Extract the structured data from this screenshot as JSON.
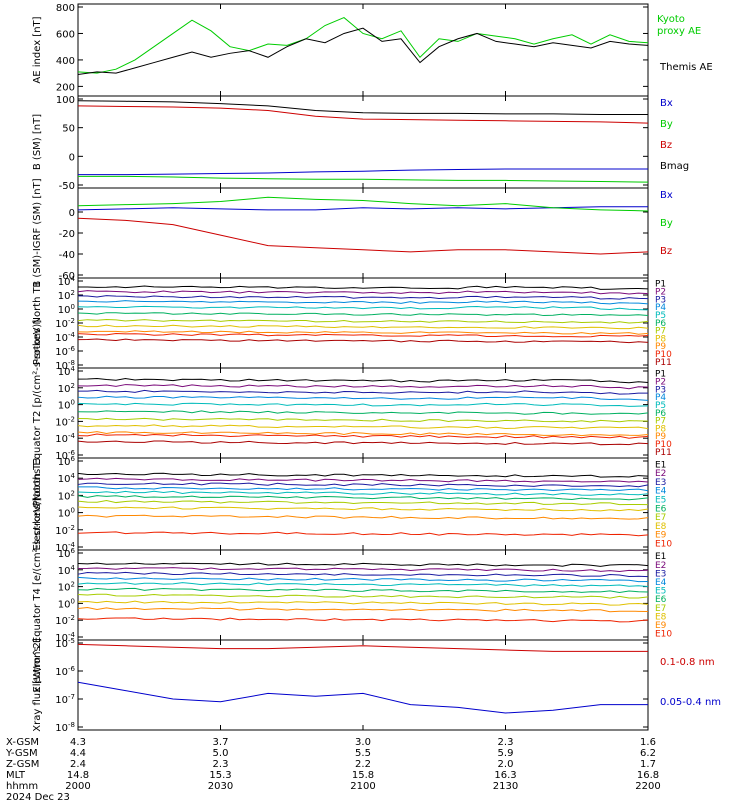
{
  "figure": {
    "date_label": "2024 Dec 23",
    "bottom_rows": [
      {
        "label": "X-GSM",
        "values": [
          "4.3",
          "3.7",
          "3.0",
          "2.3",
          "1.6"
        ]
      },
      {
        "label": "Y-GSM",
        "values": [
          "4.4",
          "5.0",
          "5.5",
          "5.9",
          "6.2"
        ]
      },
      {
        "label": "Z-GSM",
        "values": [
          "2.4",
          "2.3",
          "2.2",
          "2.0",
          "1.7"
        ]
      },
      {
        "label": "MLT",
        "values": [
          "14.8",
          "15.3",
          "15.8",
          "16.3",
          "16.8"
        ]
      },
      {
        "label": "hhmm",
        "values": [
          "2000",
          "2030",
          "2100",
          "2130",
          "2200"
        ]
      }
    ]
  },
  "chart_data": [
    {
      "type": "line",
      "ylabel": "AE index [nT]",
      "ylim": [
        150,
        800
      ],
      "yticks": [
        "800",
        "600",
        "400",
        "200"
      ],
      "x": [
        "2000",
        "2030",
        "2100",
        "2130",
        "2200"
      ],
      "series": [
        {
          "name": "Kyoto proxy AE",
          "color": "#00cc00",
          "x": [
            0,
            4,
            8,
            12,
            16,
            20,
            24,
            28,
            32,
            36,
            40,
            44,
            48,
            52,
            56,
            60,
            64,
            68,
            72,
            76,
            80,
            84,
            88,
            92,
            96,
            100,
            104,
            108,
            112,
            116,
            120
          ],
          "values": [
            310,
            300,
            330,
            400,
            500,
            600,
            700,
            620,
            500,
            470,
            520,
            510,
            560,
            660,
            720,
            600,
            560,
            620,
            420,
            560,
            540,
            600,
            580,
            560,
            520,
            560,
            590,
            520,
            590,
            540,
            530
          ]
        },
        {
          "name": "Themis AE",
          "color": "#000000",
          "x": [
            0,
            4,
            8,
            12,
            16,
            20,
            24,
            28,
            32,
            36,
            40,
            44,
            48,
            52,
            56,
            60,
            64,
            68,
            72,
            76,
            80,
            84,
            88,
            92,
            96,
            100,
            104,
            108,
            112,
            116,
            120
          ],
          "values": [
            290,
            310,
            300,
            340,
            380,
            420,
            460,
            420,
            450,
            470,
            420,
            500,
            560,
            530,
            600,
            640,
            540,
            560,
            380,
            500,
            560,
            600,
            540,
            520,
            500,
            530,
            510,
            490,
            540,
            520,
            510
          ]
        }
      ]
    },
    {
      "type": "line",
      "ylabel": "B (SM) [nT]",
      "ylim": [
        -50,
        100
      ],
      "yticks": [
        "100",
        "50",
        "0",
        "-50"
      ],
      "x": [
        "2000",
        "2030",
        "2100",
        "2130",
        "2200"
      ],
      "series": [
        {
          "name": "Bx",
          "color": "#0000cc",
          "x": [
            0,
            10,
            20,
            30,
            40,
            50,
            60,
            70,
            80,
            90,
            100,
            110,
            120
          ],
          "values": [
            -32,
            -32,
            -31,
            -30,
            -29,
            -27,
            -26,
            -24,
            -23,
            -22,
            -22,
            -22,
            -22
          ]
        },
        {
          "name": "By",
          "color": "#00cc00",
          "x": [
            0,
            10,
            20,
            30,
            40,
            50,
            60,
            70,
            80,
            90,
            100,
            110,
            120
          ],
          "values": [
            -35,
            -35,
            -36,
            -38,
            -39,
            -40,
            -40,
            -41,
            -42,
            -42,
            -43,
            -44,
            -45
          ]
        },
        {
          "name": "Bz",
          "color": "#cc0000",
          "x": [
            0,
            10,
            20,
            30,
            40,
            50,
            60,
            70,
            80,
            90,
            100,
            110,
            120
          ],
          "values": [
            88,
            87,
            86,
            84,
            80,
            70,
            65,
            64,
            63,
            62,
            61,
            60,
            58
          ]
        },
        {
          "name": "Bmag",
          "color": "#000000",
          "x": [
            0,
            10,
            20,
            30,
            40,
            50,
            60,
            70,
            80,
            90,
            100,
            110,
            120
          ],
          "values": [
            97,
            96,
            95,
            92,
            88,
            80,
            76,
            75,
            75,
            74,
            74,
            73,
            73
          ]
        }
      ]
    },
    {
      "type": "line",
      "ylabel": "B (SM)-IGRF (SM) [nT]",
      "ylim": [
        -60,
        20
      ],
      "yticks": [
        "0",
        "-20",
        "-40",
        "-60"
      ],
      "x": [
        "2000",
        "2030",
        "2100",
        "2130",
        "2200"
      ],
      "series": [
        {
          "name": "Bx",
          "color": "#0000cc",
          "x": [
            0,
            10,
            20,
            30,
            40,
            50,
            60,
            70,
            80,
            90,
            100,
            110,
            120
          ],
          "values": [
            2,
            3,
            4,
            3,
            2,
            2,
            4,
            3,
            4,
            3,
            4,
            5,
            5
          ]
        },
        {
          "name": "By",
          "color": "#00cc00",
          "x": [
            0,
            10,
            20,
            30,
            40,
            50,
            60,
            70,
            80,
            90,
            100,
            110,
            120
          ],
          "values": [
            6,
            7,
            8,
            10,
            14,
            12,
            11,
            8,
            6,
            8,
            4,
            2,
            1
          ]
        },
        {
          "name": "Bz",
          "color": "#cc0000",
          "x": [
            0,
            10,
            20,
            30,
            40,
            50,
            60,
            70,
            80,
            90,
            100,
            110,
            120
          ],
          "values": [
            -6,
            -8,
            -12,
            -22,
            -32,
            -34,
            -36,
            -38,
            -36,
            -36,
            -38,
            -40,
            -38
          ]
        }
      ]
    },
    {
      "type": "line",
      "ylabel": "Protons North T1",
      "log": true,
      "ylim": [
        -8,
        4
      ],
      "yticks": [
        "10^4",
        "10^2",
        "10^0",
        "10^-2",
        "10^-4",
        "10^-6",
        "10^-8"
      ],
      "series": [
        {
          "name": "P1",
          "base": 3.2
        },
        {
          "name": "P2",
          "base": 2.5
        },
        {
          "name": "P3",
          "base": 1.8
        },
        {
          "name": "P4",
          "base": 1.1
        },
        {
          "name": "P5",
          "base": 0.3
        },
        {
          "name": "P6",
          "base": -0.6
        },
        {
          "name": "P7",
          "base": -1.6
        },
        {
          "name": "P8",
          "base": -2.4
        },
        {
          "name": "P9",
          "base": -3.2
        },
        {
          "name": "P10",
          "base": -3.6
        },
        {
          "name": "P11",
          "base": -4.4
        }
      ]
    },
    {
      "type": "line",
      "ylabel": "Protons Equator T2 [p/(cm²-s-sr-keV)]",
      "log": true,
      "ylim": [
        -6,
        4
      ],
      "yticks": [
        "10^4",
        "10^2",
        "10^0",
        "10^-2",
        "10^-4",
        "10^-6"
      ],
      "series": [
        {
          "name": "P1",
          "base": 3.0
        },
        {
          "name": "P2",
          "base": 2.3
        },
        {
          "name": "P3",
          "base": 1.6
        },
        {
          "name": "P4",
          "base": 0.9
        },
        {
          "name": "P5",
          "base": 0.1
        },
        {
          "name": "P6",
          "base": -0.8
        },
        {
          "name": "P7",
          "base": -1.7
        },
        {
          "name": "P8",
          "base": -2.5
        },
        {
          "name": "P9",
          "base": -3.3
        },
        {
          "name": "P10",
          "base": -3.6
        },
        {
          "name": "P11",
          "base": -4.4
        }
      ]
    },
    {
      "type": "line",
      "ylabel": "Electrons North T3",
      "log": true,
      "ylim": [
        -4,
        6
      ],
      "yticks": [
        "10^6",
        "10^4",
        "10^2",
        "10^0",
        "10^-2",
        "10^-4"
      ],
      "series": [
        {
          "name": "E1",
          "base": 4.5
        },
        {
          "name": "E2",
          "base": 3.9
        },
        {
          "name": "E3",
          "base": 3.4
        },
        {
          "name": "E4",
          "base": 2.9
        },
        {
          "name": "E5",
          "base": 2.4
        },
        {
          "name": "E6",
          "base": 1.9
        },
        {
          "name": "E7",
          "base": 1.3
        },
        {
          "name": "E8",
          "base": 0.6
        },
        {
          "name": "E9",
          "base": -0.4
        },
        {
          "name": "E10",
          "base": -2.3
        }
      ]
    },
    {
      "type": "line",
      "ylabel": "Electrons Equator T4 [e/(cm²-s-sr-keV)]",
      "log": true,
      "ylim": [
        -4,
        6
      ],
      "yticks": [
        "10^6",
        "10^4",
        "10^2",
        "10^0",
        "10^-2",
        "10^-4"
      ],
      "series": [
        {
          "name": "E1",
          "base": 4.8
        },
        {
          "name": "E2",
          "base": 4.2
        },
        {
          "name": "E3",
          "base": 3.6
        },
        {
          "name": "E4",
          "base": 3.0
        },
        {
          "name": "E5",
          "base": 2.4
        },
        {
          "name": "E6",
          "base": 1.7
        },
        {
          "name": "E7",
          "base": 1.0
        },
        {
          "name": "E8",
          "base": 0.2
        },
        {
          "name": "E9",
          "base": -0.6
        },
        {
          "name": "E10",
          "base": -1.8
        }
      ]
    },
    {
      "type": "line",
      "ylabel": "Xray flux [W/m^2]",
      "log": true,
      "ylim": [
        -8,
        -5
      ],
      "yticks": [
        "10^-5",
        "10^-6",
        "10^-7",
        "10^-8"
      ],
      "series": [
        {
          "name": "0.1-0.8 nm",
          "color": "#cc0000",
          "x": [
            0,
            10,
            20,
            30,
            40,
            50,
            60,
            70,
            80,
            90,
            100,
            110,
            120
          ],
          "values": [
            -5.05,
            -5.1,
            -5.15,
            -5.2,
            -5.2,
            -5.15,
            -5.1,
            -5.15,
            -5.2,
            -5.25,
            -5.3,
            -5.3,
            -5.3
          ]
        },
        {
          "name": "0.05-0.4 nm",
          "color": "#0000cc",
          "x": [
            0,
            10,
            20,
            30,
            40,
            50,
            60,
            70,
            80,
            90,
            100,
            110,
            120
          ],
          "values": [
            -6.4,
            -6.7,
            -7.0,
            -7.1,
            -6.8,
            -6.9,
            -6.8,
            -7.2,
            -7.3,
            -7.5,
            -7.4,
            -7.2,
            -7.2
          ]
        }
      ]
    }
  ]
}
